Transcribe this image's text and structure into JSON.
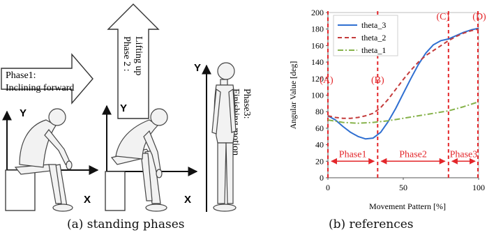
{
  "panel_a": {
    "caption": "(a) standing phases",
    "phase1": {
      "line1": "Phase1:",
      "line2": "Inclining forward"
    },
    "phase2": {
      "line1": "Phase 2 :",
      "line2": "Lifting up"
    },
    "phase3": {
      "line1": "Phase3:",
      "line2": "Finishing motion"
    },
    "axis_y": "Y",
    "axis_x": "X"
  },
  "panel_b": {
    "caption": "(b) references",
    "markers": [
      "(A)",
      "(B)",
      "(C)",
      "(D)"
    ],
    "phases": [
      "Phase1",
      "Phase2",
      "Phase3"
    ]
  },
  "colors": {
    "theta_3": "#2f6fd1",
    "theta_2": "#c43b3b",
    "theta_1": "#86b24a",
    "annotation_red": "#e3262a"
  },
  "chart_data": {
    "type": "line",
    "title": "",
    "xlabel": "Movement Pattern [%]",
    "ylabel": "Angular Value [deg]",
    "xlim": [
      0,
      100
    ],
    "ylim": [
      0,
      200
    ],
    "xticks": [
      0,
      50,
      100
    ],
    "yticks": [
      0,
      20,
      40,
      60,
      80,
      100,
      120,
      140,
      160,
      180,
      200
    ],
    "grid": false,
    "legend_position": "top-left",
    "series": [
      {
        "name": "theta_3",
        "style": "solid",
        "x": [
          0,
          5,
          10,
          15,
          20,
          25,
          30,
          35,
          40,
          45,
          50,
          55,
          60,
          65,
          70,
          75,
          80,
          85,
          90,
          95,
          100
        ],
        "y": [
          75,
          70,
          62,
          55,
          50,
          47,
          48,
          55,
          68,
          84,
          102,
          120,
          137,
          151,
          161,
          166,
          168,
          172,
          176,
          179,
          181
        ]
      },
      {
        "name": "theta_2",
        "style": "dashed",
        "x": [
          0,
          5,
          10,
          15,
          20,
          25,
          30,
          35,
          40,
          45,
          50,
          55,
          60,
          65,
          70,
          75,
          80,
          85,
          90,
          95,
          100
        ],
        "y": [
          75,
          73,
          72,
          72,
          73,
          75,
          78,
          85,
          95,
          107,
          119,
          130,
          140,
          148,
          154,
          160,
          166,
          171,
          175,
          178,
          180
        ]
      },
      {
        "name": "theta_1",
        "style": "dash-dot",
        "x": [
          0,
          10,
          20,
          30,
          40,
          50,
          60,
          70,
          80,
          90,
          100
        ],
        "y": [
          70,
          67,
          66,
          67,
          69,
          72,
          75,
          78,
          81,
          86,
          92
        ]
      }
    ],
    "annotations": {
      "markers": [
        {
          "label": "(A)",
          "x": 0
        },
        {
          "label": "(B)",
          "x": 33
        },
        {
          "label": "(C)",
          "x": 80
        },
        {
          "label": "(D)",
          "x": 100
        }
      ],
      "phases": [
        {
          "label": "Phase1",
          "from": 0,
          "to": 33
        },
        {
          "label": "Phase2",
          "from": 33,
          "to": 80
        },
        {
          "label": "Phase3",
          "from": 80,
          "to": 100
        }
      ],
      "phase_band_y": 20
    }
  }
}
